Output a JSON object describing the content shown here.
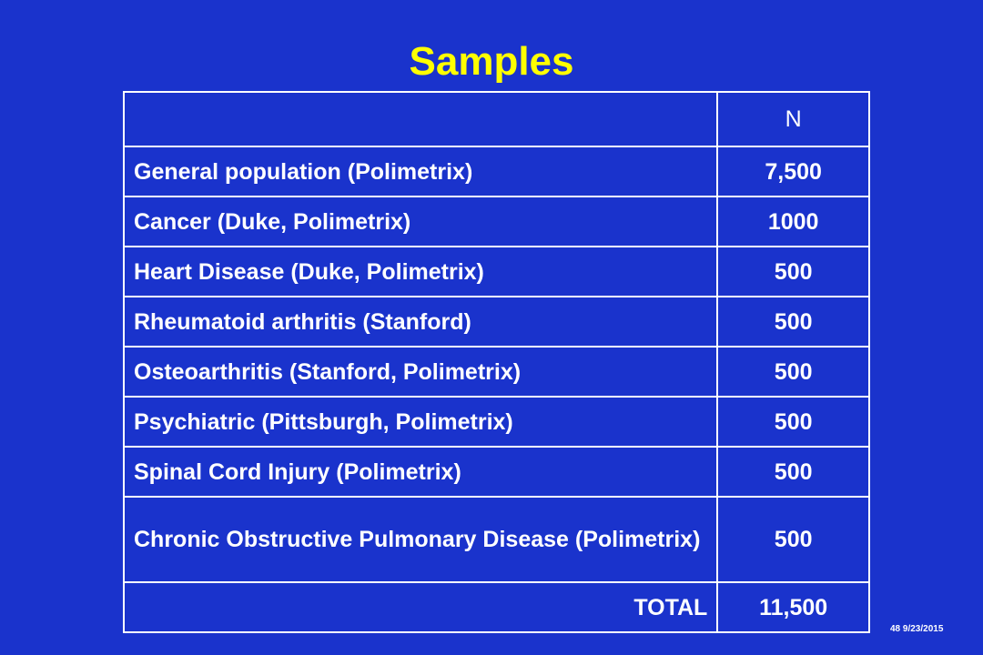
{
  "slide": {
    "title": "Samples",
    "footer": "48 9/23/2015"
  },
  "table": {
    "header": {
      "label": "",
      "n": "N"
    },
    "rows": [
      {
        "label": "General population (Polimetrix)",
        "n": "7,500"
      },
      {
        "label": "Cancer (Duke, Polimetrix)",
        "n": "1000"
      },
      {
        "label": "Heart Disease (Duke, Polimetrix)",
        "n": "500"
      },
      {
        "label": "Rheumatoid arthritis (Stanford)",
        "n": "500"
      },
      {
        "label": "Osteoarthritis (Stanford, Polimetrix)",
        "n": "500"
      },
      {
        "label": "Psychiatric (Pittsburgh, Polimetrix)",
        "n": "500"
      },
      {
        "label": "Spinal Cord Injury (Polimetrix)",
        "n": "500"
      },
      {
        "label": "Chronic Obstructive Pulmonary Disease (Polimetrix)",
        "n": "500"
      }
    ],
    "total": {
      "label": "TOTAL",
      "n": "11,500"
    }
  },
  "colors": {
    "background": "#1a33cc",
    "title": "#ffff00",
    "text": "#ffffff",
    "border": "#ffffff"
  }
}
